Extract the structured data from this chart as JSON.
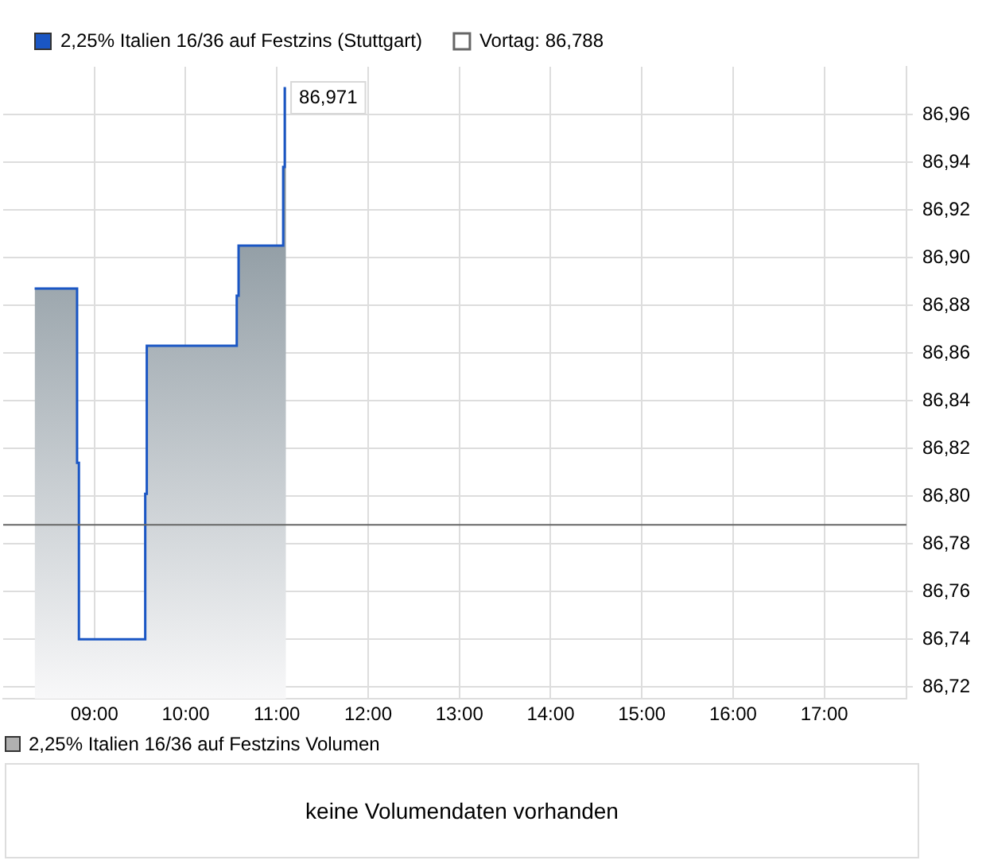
{
  "chart_data": [
    {
      "type": "step",
      "x": [
        8.345,
        8.81,
        8.81,
        8.83,
        8.83,
        9.557,
        9.557,
        9.574,
        9.574,
        10.56,
        10.56,
        10.58,
        10.58,
        11.069,
        11.069,
        11.086,
        11.086,
        11.1
      ],
      "series": [
        {
          "type": "area",
          "name": "2,25% Italien 16/36 auf Festzins (Stuttgart)",
          "color": "#1a56c4",
          "values": [
            86.887,
            86.887,
            86.814,
            86.814,
            86.74,
            86.74,
            86.801,
            86.801,
            86.863,
            86.863,
            86.884,
            86.884,
            86.905,
            86.905,
            86.938,
            86.938,
            86.971,
            86.971
          ]
        }
      ],
      "xlim": [
        8,
        17.9
      ],
      "xticks": [
        {
          "value": 9,
          "label": "09:00"
        },
        {
          "value": 10,
          "label": "10:00"
        },
        {
          "value": 11,
          "label": "11:00"
        },
        {
          "value": 12,
          "label": "12:00"
        },
        {
          "value": 13,
          "label": "13:00"
        },
        {
          "value": 14,
          "label": "14:00"
        },
        {
          "value": 15,
          "label": "15:00"
        },
        {
          "value": 16,
          "label": "16:00"
        },
        {
          "value": 17,
          "label": "17:00"
        }
      ],
      "ylim": [
        86.715,
        86.98
      ],
      "yticks": [
        {
          "value": 86.72,
          "label": "86,72"
        },
        {
          "value": 86.74,
          "label": "86,74"
        },
        {
          "value": 86.76,
          "label": "86,76"
        },
        {
          "value": 86.78,
          "label": "86,78"
        },
        {
          "value": 86.8,
          "label": "86,80"
        },
        {
          "value": 86.82,
          "label": "86,82"
        },
        {
          "value": 86.84,
          "label": "86,84"
        },
        {
          "value": 86.86,
          "label": "86,86"
        },
        {
          "value": 86.88,
          "label": "86,88"
        },
        {
          "value": 86.9,
          "label": "86,90"
        },
        {
          "value": 86.92,
          "label": "86,92"
        },
        {
          "value": 86.94,
          "label": "86,94"
        },
        {
          "value": 86.96,
          "label": "86,96"
        }
      ],
      "ref_lines": [
        {
          "axis": "y",
          "value": 86.788,
          "label": "Vortag: 86,788",
          "color": "#666666"
        }
      ],
      "annotations": [
        {
          "text": "86,971",
          "x": 11.086,
          "y": 86.971
        }
      ],
      "grid": true,
      "legend": "top left"
    },
    {
      "type": "other",
      "title": "2,25% Italien 16/36 auf Festzins Volumen",
      "annotations": [
        "keine Volumendaten vorhanden"
      ]
    }
  ]
}
